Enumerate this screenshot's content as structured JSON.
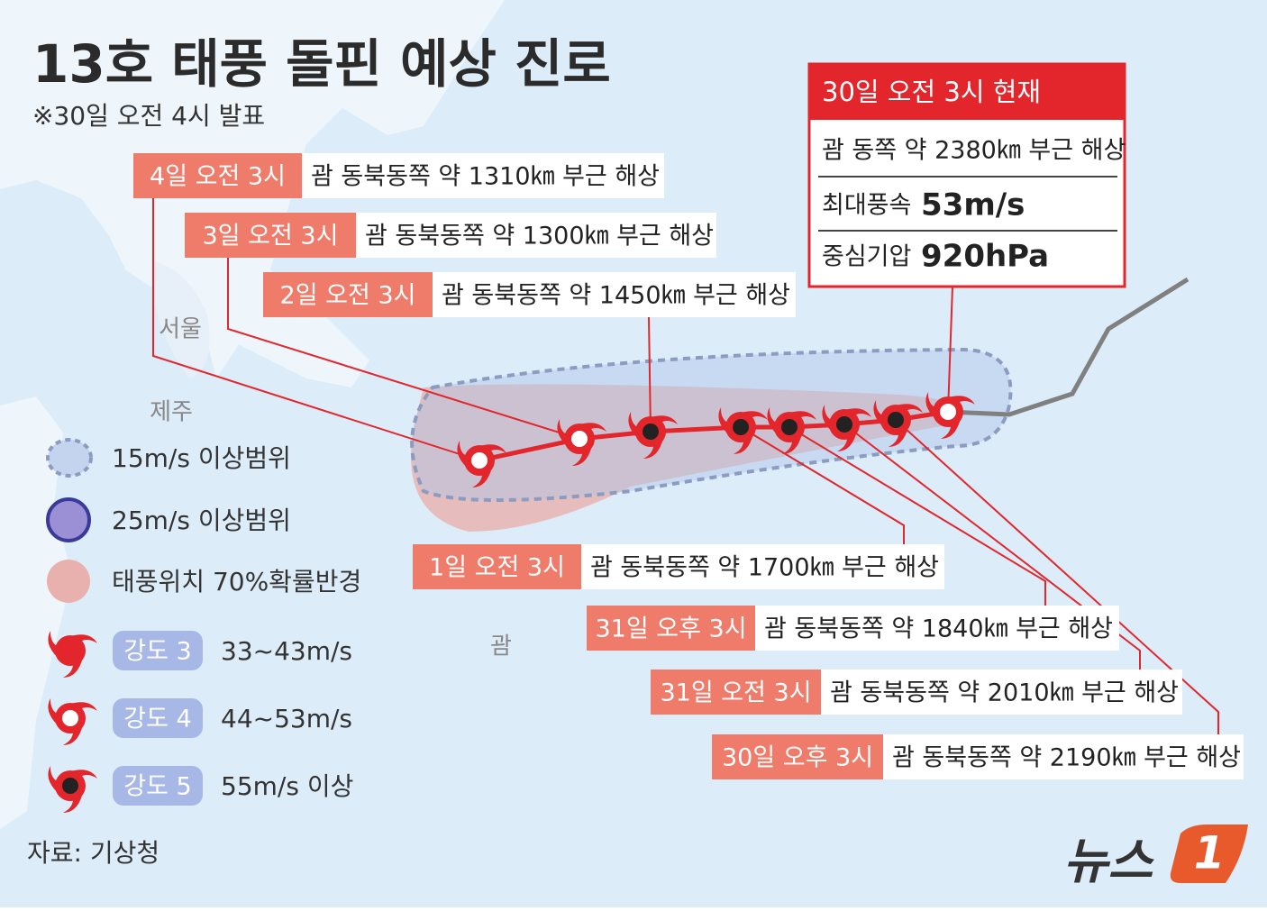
{
  "title": "13호 태풍 돌핀 예상 진로",
  "subtitle": "※30일 오전 4시 발표",
  "current": {
    "header": "30일 오전 3시 현재",
    "location": "괌 동쪽 약 2380㎞ 부근 해상",
    "wind_label": "최대풍속",
    "wind": "53m/s",
    "pressure_label": "중심기압",
    "pressure": "920hPa"
  },
  "forecasts": [
    {
      "time": "30일 오후 3시",
      "location": "괌 동북동쪽 약 2190㎞ 부근 해상"
    },
    {
      "time": "31일 오전 3시",
      "location": "괌 동북동쪽 약 2010㎞ 부근 해상"
    },
    {
      "time": "31일 오후 3시",
      "location": "괌 동북동쪽 약 1840㎞ 부근 해상"
    },
    {
      "time": "1일 오전 3시",
      "location": "괌 동북동쪽 약 1700㎞ 부근 해상"
    },
    {
      "time": "2일 오전 3시",
      "location": "괌 동북동쪽 약 1450㎞ 부근 해상"
    },
    {
      "time": "3일 오전 3시",
      "location": "괌 동북동쪽 약 1300㎞ 부근 해상"
    },
    {
      "time": "4일 오전 3시",
      "location": "괌 동북동쪽 약 1310㎞ 부근 해상"
    }
  ],
  "places": [
    "서울",
    "제주",
    "괌"
  ],
  "legend": [
    "15m/s 이상범위",
    "25m/s 이상범위",
    "태풍위치 70%확률반경"
  ],
  "intensity": [
    {
      "grade": "강도 3",
      "range": "33~43m/s"
    },
    {
      "grade": "강도 4",
      "range": "44~53m/s"
    },
    {
      "grade": "강도 5",
      "range": "55m/s 이상"
    }
  ],
  "source": "자료: 기상청",
  "logo": {
    "text": "뉴스",
    "mark": "1"
  }
}
